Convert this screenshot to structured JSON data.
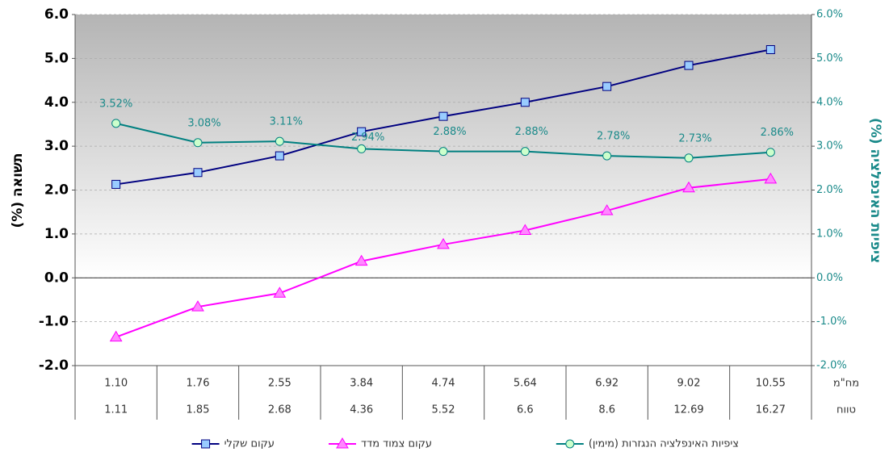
{
  "chart_data": {
    "type": "line",
    "categories": [
      "1.10",
      "1.76",
      "2.55",
      "3.84",
      "4.74",
      "5.64",
      "6.92",
      "9.02",
      "10.55"
    ],
    "secondary_categories": [
      "1.11",
      "1.85",
      "2.68",
      "4.36",
      "5.52",
      "6.6",
      "8.6",
      "12.69",
      "16.27"
    ],
    "category_row_label": "מח\"מ",
    "secondary_row_label": "טווח",
    "ylabel": "תשואה (%)",
    "y2label": "ציפיות האינפלציה (%)",
    "ylim": [
      -2,
      6
    ],
    "yticks": [
      {
        "value": 6,
        "label": "6.0"
      },
      {
        "value": 5,
        "label": "5.0"
      },
      {
        "value": 4,
        "label": "4.0"
      },
      {
        "value": 3,
        "label": "3.0"
      },
      {
        "value": 2,
        "label": "2.0"
      },
      {
        "value": 1,
        "label": "1.0"
      },
      {
        "value": 0,
        "label": "0.0"
      },
      {
        "value": -1,
        "label": "-1.0"
      },
      {
        "value": -2,
        "label": "-2.0"
      }
    ],
    "y2lim": [
      -2,
      6
    ],
    "y2ticks": [
      {
        "value": 6,
        "label": "6.0%"
      },
      {
        "value": 5,
        "label": "5.0%"
      },
      {
        "value": 4,
        "label": "4.0%"
      },
      {
        "value": 3,
        "label": "3.0%"
      },
      {
        "value": 2,
        "label": "2.0%"
      },
      {
        "value": 1,
        "label": "1.0%"
      },
      {
        "value": 0,
        "label": "0.0%"
      },
      {
        "value": -1,
        "label": "-1.0%"
      },
      {
        "value": -2,
        "label": "-2.0%"
      }
    ],
    "grid": true,
    "series": [
      {
        "name": "עקום שקלי",
        "color": "#000080",
        "marker": "square",
        "marker_fill": "#99ccff",
        "values": [
          2.13,
          2.4,
          2.78,
          3.33,
          3.68,
          4.0,
          4.36,
          4.84,
          5.2
        ]
      },
      {
        "name": "עקום צמוד מדד",
        "color": "#ff00ff",
        "marker": "triangle",
        "marker_fill": "#ff88ff",
        "values": [
          -1.35,
          -0.66,
          -0.35,
          0.38,
          0.76,
          1.08,
          1.53,
          2.05,
          2.25
        ]
      },
      {
        "name": "ציפיות האינפלציה הנגזרות (מימין)",
        "color": "#008080",
        "marker": "circle",
        "marker_fill": "#ccffcc",
        "axis": "y2",
        "values": [
          3.52,
          3.08,
          3.11,
          2.94,
          2.88,
          2.88,
          2.78,
          2.73,
          2.86
        ],
        "value_labels": [
          "3.52%",
          "3.08%",
          "3.11%",
          "2.94%",
          "2.88%",
          "2.88%",
          "2.78%",
          "2.73%",
          "2.86%"
        ]
      }
    ]
  }
}
